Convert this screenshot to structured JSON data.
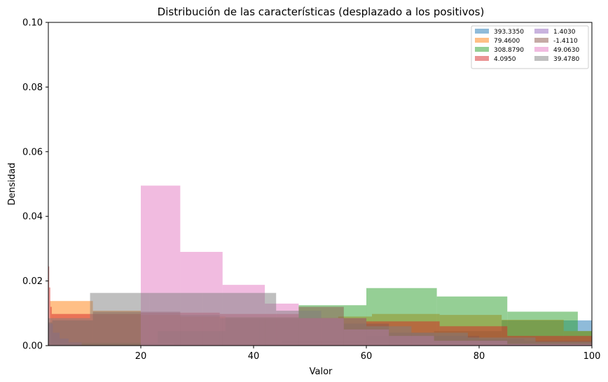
{
  "chart_data": {
    "type": "histogram",
    "title": "Distribución de las características (desplazado a los positivos)",
    "xlabel": "Valor",
    "ylabel": "Densidad",
    "xlim": [
      3.6,
      100
    ],
    "ylim": [
      0,
      0.1
    ],
    "x_ticks": [
      20,
      40,
      60,
      80,
      100
    ],
    "y_ticks": [
      0.0,
      0.02,
      0.04,
      0.06,
      0.08,
      0.1
    ],
    "y_tick_labels": [
      "0.00",
      "0.02",
      "0.04",
      "0.06",
      "0.08",
      "0.10"
    ],
    "grid": false,
    "legend": {
      "placement": "top-right",
      "columns": 2
    },
    "series": [
      {
        "name": "393.3350",
        "color": "#1f77b4",
        "bins": [
          [
            3.6,
            26,
            0.0003
          ],
          [
            26,
            45,
            0.0008
          ],
          [
            45,
            60,
            0.0015
          ],
          [
            60,
            72,
            0.003
          ],
          [
            72,
            84,
            0.0045
          ],
          [
            84,
            100,
            0.0078
          ]
        ]
      },
      {
        "name": "79.4600",
        "color": "#ff7f0e",
        "bins": [
          [
            3.6,
            3.9,
            0.0005
          ],
          [
            3.9,
            11.5,
            0.0138
          ],
          [
            11.5,
            20,
            0.0108
          ],
          [
            20,
            27,
            0.0095
          ],
          [
            27,
            35,
            0.009
          ],
          [
            35,
            46,
            0.0085
          ],
          [
            46,
            55,
            0.0085
          ],
          [
            55,
            61,
            0.009
          ],
          [
            61,
            73,
            0.0098
          ],
          [
            73,
            84,
            0.0095
          ],
          [
            84,
            95,
            0.008
          ],
          [
            95,
            100,
            0.0045
          ]
        ]
      },
      {
        "name": "308.8790",
        "color": "#2ca02c",
        "bins": [
          [
            3.6,
            9.5,
            0.0003
          ],
          [
            9.5,
            23,
            0.0008
          ],
          [
            23,
            35,
            0.0045
          ],
          [
            35,
            48,
            0.0088
          ],
          [
            48,
            60,
            0.0125
          ],
          [
            60,
            72.5,
            0.0178
          ],
          [
            72.5,
            85,
            0.0152
          ],
          [
            85,
            97.5,
            0.0105
          ],
          [
            97.5,
            100,
            0.0045
          ]
        ]
      },
      {
        "name": "4.0950",
        "color": "#d62728",
        "bins": [
          [
            3.6,
            3.75,
            0.0245
          ],
          [
            3.75,
            3.95,
            0.018
          ],
          [
            3.95,
            4.2,
            0.012
          ],
          [
            4.2,
            4.6,
            0.0098
          ],
          [
            4.6,
            20,
            0.0098
          ],
          [
            20,
            34,
            0.0102
          ],
          [
            34,
            48,
            0.0098
          ],
          [
            48,
            60,
            0.0085
          ],
          [
            60,
            73,
            0.0075
          ],
          [
            73,
            85,
            0.006
          ],
          [
            85,
            100,
            0.003
          ]
        ]
      },
      {
        "name": "1.4030",
        "color": "#9467bd",
        "bins": [
          [
            3.6,
            4.4,
            0.0068
          ],
          [
            4.4,
            5.6,
            0.004
          ],
          [
            5.6,
            7.2,
            0.0022
          ],
          [
            7.2,
            9.5,
            0.001
          ],
          [
            9.5,
            100,
            0.0001
          ]
        ]
      },
      {
        "name": "-1.4110",
        "color": "#8c564b",
        "bins": [
          [
            3.6,
            4.3,
            0.0072
          ],
          [
            4.3,
            11.5,
            0.0078
          ],
          [
            11.5,
            20,
            0.0105
          ],
          [
            20,
            27,
            0.0105
          ],
          [
            27,
            34,
            0.0095
          ],
          [
            34,
            41,
            0.0085
          ],
          [
            41,
            48,
            0.0085
          ],
          [
            48,
            56,
            0.012
          ],
          [
            56,
            64,
            0.0068
          ],
          [
            64,
            72,
            0.004
          ],
          [
            72,
            80,
            0.003
          ],
          [
            80,
            88,
            0.002
          ],
          [
            88,
            100,
            0.0015
          ]
        ]
      },
      {
        "name": "49.0630",
        "color": "#e377c2",
        "bins": [
          [
            20,
            27,
            0.0495
          ],
          [
            27,
            34.5,
            0.029
          ],
          [
            34.5,
            42,
            0.0188
          ],
          [
            42,
            48,
            0.013
          ],
          [
            48,
            56,
            0.0085
          ],
          [
            56,
            64,
            0.005
          ],
          [
            64,
            72,
            0.003
          ],
          [
            72,
            85,
            0.0015
          ],
          [
            85,
            100,
            0.0005
          ]
        ]
      },
      {
        "name": "39.4780",
        "color": "#7f7f7f",
        "bins": [
          [
            3.6,
            11,
            0.0085
          ],
          [
            11,
            21.5,
            0.0163
          ],
          [
            21.5,
            31,
            0.0163
          ],
          [
            31,
            44,
            0.0163
          ],
          [
            44,
            52,
            0.0108
          ],
          [
            52,
            60,
            0.0085
          ],
          [
            60,
            68,
            0.006
          ],
          [
            68,
            78,
            0.004
          ],
          [
            78,
            90,
            0.0025
          ],
          [
            90,
            100,
            0.0012
          ]
        ]
      }
    ]
  }
}
